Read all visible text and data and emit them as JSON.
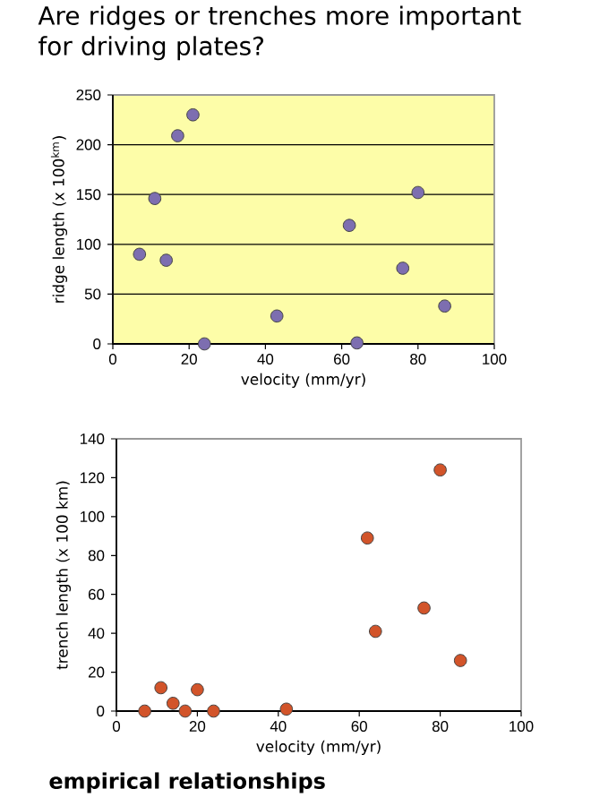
{
  "chart_data": [
    {
      "type": "scatter",
      "title": "Are ridges or trenches more important for driving plates?",
      "xlabel": "velocity  (mm/yr)",
      "ylabel": "ridge length  (x 100$^{km}$)",
      "x": [
        7,
        11,
        14,
        17,
        21,
        24,
        43,
        62,
        64,
        76,
        80,
        87
      ],
      "values": [
        90,
        146,
        84,
        209,
        230,
        0,
        28,
        119,
        1,
        76,
        152,
        38
      ],
      "color": "#7d6eb0",
      "marker": "circle",
      "xlim": [
        0,
        100
      ],
      "ylim": [
        0,
        250
      ],
      "xticks": [
        0,
        20,
        40,
        60,
        80,
        100
      ],
      "yticks": [
        0,
        50,
        100,
        150,
        200,
        250
      ],
      "grid": "y"
    },
    {
      "type": "scatter",
      "xlabel": "velocity  (mm/yr)",
      "ylabel": "trench length (x 100 km)",
      "x": [
        7,
        11,
        14,
        17,
        20,
        24,
        42,
        62,
        64,
        76,
        80,
        85
      ],
      "values": [
        0,
        12,
        4,
        0,
        11,
        0,
        1,
        89,
        41,
        53,
        124,
        26
      ],
      "color": "#d2542a",
      "marker": "circle",
      "xlim": [
        0,
        100
      ],
      "ylim": [
        0,
        140
      ],
      "xticks": [
        0,
        20,
        40,
        60,
        80,
        100
      ],
      "yticks": [
        0,
        20,
        40,
        60,
        80,
        100,
        120,
        140
      ],
      "annotations": [
        "empirical relationships"
      ]
    }
  ]
}
